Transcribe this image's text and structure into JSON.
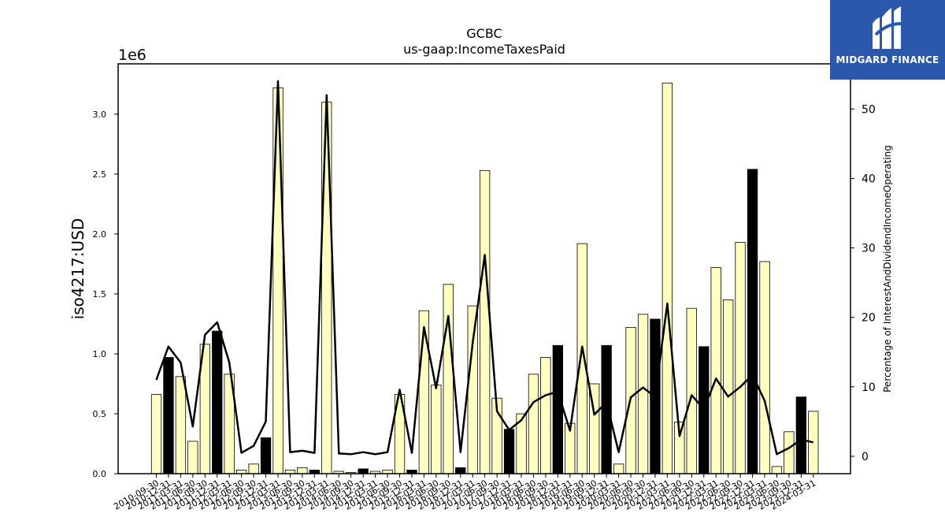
{
  "chart_data": {
    "type": "bar",
    "title": "GCBC",
    "subtitle": "us-gaap:IncomeTaxesPaid",
    "ylabel": "iso4217:USD",
    "y2label": "Percentage of InterestAndDividendIncomeOperating",
    "y_offset_text": "1e6",
    "ylim": [
      0,
      3.42
    ],
    "y_ticks": [
      "0.0",
      "0.5",
      "1.0",
      "1.5",
      "2.0",
      "2.5",
      "3.0"
    ],
    "y2lim": [
      -2.5,
      56.5
    ],
    "y2_ticks": [
      "0",
      "10",
      "20",
      "30",
      "40",
      "50"
    ],
    "bar_colors": {
      "quarter": "#ffffc0",
      "annual": "#000000"
    },
    "line_color": "#000000",
    "categories": [
      "2010-09-30",
      "2010-12-31",
      "2011-03-31",
      "2011-06-30",
      "2011-09-30",
      "2011-12-31",
      "2012-03-31",
      "2012-06-30",
      "2012-09-30",
      "2012-12-31",
      "2013-03-31",
      "2013-06-30",
      "2013-09-30",
      "2013-12-31",
      "2014-03-31",
      "2014-06-30",
      "2014-09-30",
      "2014-12-31",
      "2015-03-31",
      "2015-06-30",
      "2015-09-30",
      "2015-12-31",
      "2016-03-31",
      "2016-06-30",
      "2016-09-30",
      "2016-12-31",
      "2017-03-31",
      "2017-06-30",
      "2017-09-30",
      "2017-12-31",
      "2018-03-31",
      "2018-06-30",
      "2018-09-30",
      "2018-12-31",
      "2019-03-31",
      "2019-06-30",
      "2019-09-30",
      "2019-12-31",
      "2020-03-31",
      "2020-06-30",
      "2020-09-30",
      "2020-12-31",
      "2021-03-31",
      "2021-06-30",
      "2021-09-30",
      "2021-12-31",
      "2022-03-31",
      "2022-06-30",
      "2022-09-30",
      "2022-12-31",
      "2023-03-31",
      "2023-06-30",
      "2023-09-30",
      "2023-12-31",
      "2024-03-31"
    ],
    "series": [
      {
        "values": [
          0.66,
          0.97,
          0.81,
          0.27,
          1.08,
          1.19,
          0.83,
          0.03,
          0.08,
          0.3,
          3.22,
          0.03,
          0.05,
          0.03,
          3.1,
          0.02,
          0.01,
          0.04,
          0.02,
          0.03,
          0.66,
          0.03,
          1.36,
          0.74,
          1.58,
          0.05,
          1.4,
          2.53,
          0.63,
          0.37,
          0.5,
          0.83,
          0.97,
          1.07,
          0.42,
          1.92,
          0.75,
          1.07,
          0.08,
          1.22,
          1.33,
          1.29,
          3.26,
          0.43,
          1.38,
          1.06,
          1.72,
          1.45,
          1.93,
          2.54,
          1.77,
          0.06,
          0.35,
          0.64,
          0.52
        ],
        "annual": [
          false,
          true,
          false,
          false,
          false,
          true,
          false,
          false,
          false,
          true,
          false,
          false,
          false,
          true,
          false,
          false,
          false,
          true,
          false,
          false,
          false,
          true,
          false,
          false,
          false,
          true,
          false,
          false,
          false,
          true,
          false,
          false,
          false,
          true,
          false,
          false,
          false,
          true,
          false,
          false,
          false,
          true,
          false,
          false,
          false,
          true,
          false,
          false,
          false,
          true,
          false,
          false,
          false,
          true,
          false
        ]
      },
      {
        "axis": "right",
        "values": [
          11.0,
          15.8,
          13.5,
          4.3,
          17.5,
          19.3,
          13.5,
          0.5,
          1.5,
          5.0,
          54.0,
          0.6,
          0.8,
          0.5,
          52.0,
          0.4,
          0.3,
          0.6,
          0.3,
          0.6,
          9.6,
          0.5,
          18.6,
          9.8,
          20.2,
          0.6,
          16.3,
          29.0,
          6.5,
          3.8,
          5.2,
          7.8,
          8.8,
          9.3,
          3.7,
          15.8,
          6.0,
          7.8,
          0.6,
          8.5,
          9.9,
          8.6,
          22.0,
          2.9,
          8.8,
          6.8,
          11.2,
          8.6,
          10.0,
          11.7,
          8.0,
          0.3,
          1.2,
          2.4,
          2.0
        ]
      }
    ]
  },
  "logo": {
    "name": "MIDGARD FINANCE"
  }
}
